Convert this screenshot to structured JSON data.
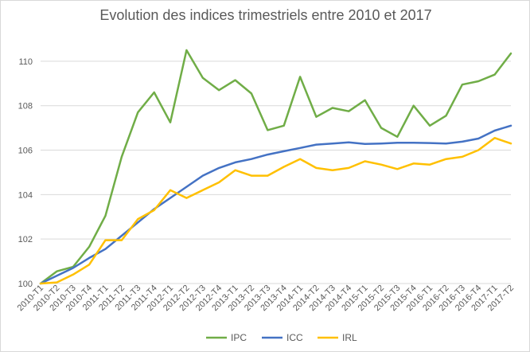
{
  "chart_data": {
    "type": "line",
    "title": "Evolution des indices trimestriels entre 2010 et 2017",
    "xlabel": "",
    "ylabel": "",
    "ylim": [
      100,
      111
    ],
    "y_ticks": [
      100,
      102,
      104,
      106,
      108,
      110
    ],
    "grid": "horizontal",
    "legend_position": "bottom",
    "categories": [
      "2010-T1",
      "2010-T2",
      "2010-T3",
      "2010-T4",
      "2011-T1",
      "2011-T2",
      "2011-T3",
      "2011-T4",
      "2012-T1",
      "2012-T2",
      "2012-T3",
      "2012-T4",
      "2013-T1",
      "2013-T2",
      "2013-T3",
      "2013-T4",
      "2014-T1",
      "2014-T2",
      "2014-T3",
      "2014-T4",
      "2015-T1",
      "2015-T2",
      "2015-T3",
      "2015-T4",
      "2016-T1",
      "2016-T2",
      "2016-T3",
      "2016-T4",
      "2017-T1",
      "2017-T2"
    ],
    "series": [
      {
        "name": "IPC",
        "color": "#70ad47",
        "values": [
          100,
          100.55,
          100.75,
          101.65,
          103.05,
          105.7,
          107.7,
          108.6,
          107.25,
          110.5,
          109.25,
          108.7,
          109.15,
          108.55,
          106.9,
          107.1,
          109.3,
          107.5,
          107.9,
          107.75,
          108.25,
          107.0,
          106.6,
          108.0,
          107.1,
          107.55,
          108.95,
          109.1,
          109.4,
          110.35
        ]
      },
      {
        "name": "ICC",
        "color": "#4472c4",
        "values": [
          100,
          100.35,
          100.7,
          101.15,
          101.55,
          102.15,
          102.75,
          103.35,
          103.85,
          104.35,
          104.85,
          105.2,
          105.45,
          105.6,
          105.8,
          105.95,
          106.1,
          106.25,
          106.3,
          106.35,
          106.28,
          106.3,
          106.33,
          106.33,
          106.32,
          106.3,
          106.38,
          106.52,
          106.88,
          107.1
        ]
      },
      {
        "name": "IRL",
        "color": "#ffc000",
        "values": [
          100,
          100.05,
          100.4,
          100.85,
          101.95,
          101.95,
          102.9,
          103.3,
          104.2,
          103.85,
          104.2,
          104.55,
          105.1,
          104.85,
          104.85,
          105.25,
          105.6,
          105.2,
          105.1,
          105.2,
          105.5,
          105.35,
          105.15,
          105.4,
          105.35,
          105.6,
          105.7,
          106.0,
          106.55,
          106.3
        ]
      }
    ]
  }
}
